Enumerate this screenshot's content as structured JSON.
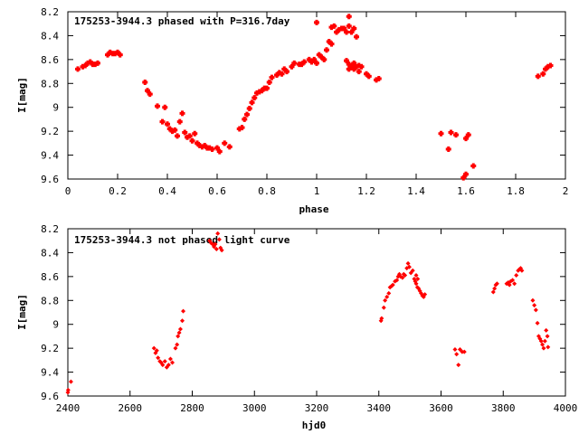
{
  "colors": {
    "points": "#ff0000",
    "axes": "#000000",
    "background": "#ffffff"
  },
  "chart_data": [
    {
      "type": "scatter",
      "title": "175253-3944.3 phased with P=316.7day",
      "xlabel": "phase",
      "ylabel": "I[mag]",
      "xlim": [
        0,
        2
      ],
      "ylim": [
        8.2,
        9.6
      ],
      "y_inverted": true,
      "grid": false,
      "xticks": [
        "0",
        "0.2",
        "0.4",
        "0.6",
        "0.8",
        "1",
        "1.2",
        "1.4",
        "1.6",
        "1.8",
        "2"
      ],
      "yticks": [
        "8.2",
        "8.4",
        "8.6",
        "8.8",
        "9",
        "9.2",
        "9.4",
        "9.6"
      ],
      "marker": "cross",
      "points": [
        [
          0.04,
          8.68
        ],
        [
          0.06,
          8.66
        ],
        [
          0.07,
          8.65
        ],
        [
          0.08,
          8.63
        ],
        [
          0.09,
          8.62
        ],
        [
          0.1,
          8.64
        ],
        [
          0.11,
          8.64
        ],
        [
          0.12,
          8.63
        ],
        [
          0.16,
          8.56
        ],
        [
          0.17,
          8.54
        ],
        [
          0.18,
          8.55
        ],
        [
          0.19,
          8.55
        ],
        [
          0.2,
          8.54
        ],
        [
          0.21,
          8.56
        ],
        [
          0.31,
          8.79
        ],
        [
          0.32,
          8.86
        ],
        [
          0.33,
          8.89
        ],
        [
          0.36,
          8.99
        ],
        [
          0.38,
          9.12
        ],
        [
          0.39,
          9.0
        ],
        [
          0.4,
          9.14
        ],
        [
          0.41,
          9.18
        ],
        [
          0.42,
          9.2
        ],
        [
          0.43,
          9.19
        ],
        [
          0.44,
          9.24
        ],
        [
          0.45,
          9.12
        ],
        [
          0.46,
          9.05
        ],
        [
          0.47,
          9.21
        ],
        [
          0.48,
          9.25
        ],
        [
          0.49,
          9.24
        ],
        [
          0.5,
          9.28
        ],
        [
          0.51,
          9.22
        ],
        [
          0.52,
          9.3
        ],
        [
          0.53,
          9.32
        ],
        [
          0.54,
          9.33
        ],
        [
          0.55,
          9.32
        ],
        [
          0.56,
          9.34
        ],
        [
          0.57,
          9.34
        ],
        [
          0.58,
          9.35
        ],
        [
          0.6,
          9.34
        ],
        [
          0.61,
          9.37
        ],
        [
          0.63,
          9.3
        ],
        [
          0.65,
          9.33
        ],
        [
          0.69,
          9.18
        ],
        [
          0.7,
          9.17
        ],
        [
          0.71,
          9.1
        ],
        [
          0.72,
          9.06
        ],
        [
          0.73,
          9.01
        ],
        [
          0.74,
          8.96
        ],
        [
          0.75,
          8.92
        ],
        [
          0.76,
          8.88
        ],
        [
          0.77,
          8.87
        ],
        [
          0.78,
          8.86
        ],
        [
          0.79,
          8.84
        ],
        [
          0.8,
          8.84
        ],
        [
          0.81,
          8.79
        ],
        [
          0.82,
          8.75
        ],
        [
          0.84,
          8.73
        ],
        [
          0.85,
          8.71
        ],
        [
          0.86,
          8.72
        ],
        [
          0.87,
          8.68
        ],
        [
          0.88,
          8.7
        ],
        [
          0.9,
          8.66
        ],
        [
          0.91,
          8.63
        ],
        [
          0.93,
          8.64
        ],
        [
          0.94,
          8.64
        ],
        [
          0.95,
          8.62
        ],
        [
          0.97,
          8.6
        ],
        [
          0.98,
          8.62
        ],
        [
          0.99,
          8.6
        ],
        [
          1.0,
          8.63
        ],
        [
          1.01,
          8.56
        ],
        [
          1.02,
          8.58
        ],
        [
          1.03,
          8.6
        ],
        [
          1.04,
          8.52
        ],
        [
          1.05,
          8.45
        ],
        [
          1.06,
          8.33
        ],
        [
          1.07,
          8.32
        ],
        [
          1.08,
          8.37
        ],
        [
          1.09,
          8.35
        ],
        [
          1.1,
          8.34
        ],
        [
          1.11,
          8.34
        ],
        [
          1.12,
          8.37
        ],
        [
          1.13,
          8.32
        ],
        [
          1.14,
          8.37
        ],
        [
          1.15,
          8.34
        ],
        [
          1.16,
          8.41
        ],
        [
          1.0,
          8.29
        ],
        [
          1.13,
          8.24
        ],
        [
          1.06,
          8.47
        ],
        [
          1.12,
          8.61
        ],
        [
          1.13,
          8.64
        ],
        [
          1.14,
          8.66
        ],
        [
          1.15,
          8.63
        ],
        [
          1.16,
          8.66
        ],
        [
          1.17,
          8.65
        ],
        [
          1.18,
          8.66
        ],
        [
          1.2,
          8.72
        ],
        [
          1.21,
          8.74
        ],
        [
          1.24,
          8.77
        ],
        [
          1.25,
          8.76
        ],
        [
          1.13,
          8.68
        ],
        [
          1.15,
          8.68
        ],
        [
          1.17,
          8.7
        ],
        [
          1.5,
          9.22
        ],
        [
          1.53,
          9.35
        ],
        [
          1.54,
          9.21
        ],
        [
          1.56,
          9.23
        ],
        [
          1.59,
          9.59
        ],
        [
          1.6,
          9.56
        ],
        [
          1.6,
          9.26
        ],
        [
          1.61,
          9.23
        ],
        [
          1.63,
          9.49
        ],
        [
          1.89,
          8.74
        ],
        [
          1.91,
          8.72
        ],
        [
          1.92,
          8.68
        ],
        [
          1.93,
          8.66
        ],
        [
          1.94,
          8.65
        ]
      ]
    },
    {
      "type": "scatter",
      "title": "175253-3944.3 not phased light curve",
      "xlabel": "hjd0",
      "ylabel": "I[mag]",
      "xlim": [
        2400,
        4000
      ],
      "ylim": [
        8.2,
        9.6
      ],
      "y_inverted": true,
      "grid": false,
      "xticks": [
        "2400",
        "2600",
        "2800",
        "3000",
        "3200",
        "3400",
        "3600",
        "3800",
        "4000"
      ],
      "yticks": [
        "8.2",
        "8.4",
        "8.6",
        "8.8",
        "9",
        "9.2",
        "9.4",
        "9.6"
      ],
      "marker": "diamond",
      "points": [
        [
          2400,
          9.57
        ],
        [
          2401,
          9.55
        ],
        [
          2410,
          9.48
        ],
        [
          2677,
          9.2
        ],
        [
          2682,
          9.24
        ],
        [
          2686,
          9.22
        ],
        [
          2690,
          9.28
        ],
        [
          2696,
          9.31
        ],
        [
          2700,
          9.32
        ],
        [
          2705,
          9.34
        ],
        [
          2712,
          9.31
        ],
        [
          2718,
          9.36
        ],
        [
          2724,
          9.34
        ],
        [
          2730,
          9.29
        ],
        [
          2736,
          9.32
        ],
        [
          2746,
          9.2
        ],
        [
          2751,
          9.17
        ],
        [
          2754,
          9.1
        ],
        [
          2758,
          9.07
        ],
        [
          2762,
          9.04
        ],
        [
          2768,
          8.97
        ],
        [
          2771,
          8.89
        ],
        [
          2856,
          8.3
        ],
        [
          2861,
          8.32
        ],
        [
          2866,
          8.33
        ],
        [
          2870,
          8.35
        ],
        [
          2874,
          8.33
        ],
        [
          2878,
          8.37
        ],
        [
          2882,
          8.24
        ],
        [
          2887,
          8.29
        ],
        [
          2891,
          8.36
        ],
        [
          2895,
          8.38
        ],
        [
          3407,
          8.97
        ],
        [
          3409,
          8.95
        ],
        [
          3416,
          8.86
        ],
        [
          3420,
          8.8
        ],
        [
          3426,
          8.77
        ],
        [
          3432,
          8.74
        ],
        [
          3436,
          8.69
        ],
        [
          3441,
          8.68
        ],
        [
          3445,
          8.67
        ],
        [
          3452,
          8.64
        ],
        [
          3458,
          8.63
        ],
        [
          3462,
          8.6
        ],
        [
          3466,
          8.58
        ],
        [
          3470,
          8.6
        ],
        [
          3476,
          8.61
        ],
        [
          3480,
          8.58
        ],
        [
          3484,
          8.59
        ],
        [
          3490,
          8.53
        ],
        [
          3494,
          8.49
        ],
        [
          3498,
          8.52
        ],
        [
          3503,
          8.57
        ],
        [
          3509,
          8.55
        ],
        [
          3514,
          8.62
        ],
        [
          3517,
          8.64
        ],
        [
          3520,
          8.66
        ],
        [
          3524,
          8.69
        ],
        [
          3528,
          8.7
        ],
        [
          3532,
          8.72
        ],
        [
          3536,
          8.74
        ],
        [
          3540,
          8.76
        ],
        [
          3544,
          8.77
        ],
        [
          3548,
          8.75
        ],
        [
          3520,
          8.59
        ],
        [
          3525,
          8.62
        ],
        [
          3645,
          9.21
        ],
        [
          3650,
          9.25
        ],
        [
          3656,
          9.34
        ],
        [
          3661,
          9.21
        ],
        [
          3668,
          9.23
        ],
        [
          3675,
          9.23
        ],
        [
          3768,
          8.73
        ],
        [
          3772,
          8.7
        ],
        [
          3776,
          8.67
        ],
        [
          3780,
          8.66
        ],
        [
          3811,
          8.66
        ],
        [
          3816,
          8.65
        ],
        [
          3820,
          8.67
        ],
        [
          3824,
          8.64
        ],
        [
          3830,
          8.63
        ],
        [
          3836,
          8.66
        ],
        [
          3842,
          8.59
        ],
        [
          3848,
          8.55
        ],
        [
          3852,
          8.54
        ],
        [
          3856,
          8.53
        ],
        [
          3860,
          8.55
        ],
        [
          3895,
          8.8
        ],
        [
          3900,
          8.84
        ],
        [
          3905,
          8.88
        ],
        [
          3910,
          8.99
        ],
        [
          3914,
          9.1
        ],
        [
          3918,
          9.12
        ],
        [
          3922,
          9.14
        ],
        [
          3926,
          9.17
        ],
        [
          3930,
          9.2
        ],
        [
          3934,
          9.14
        ],
        [
          3938,
          9.05
        ],
        [
          3942,
          9.1
        ],
        [
          3944,
          9.19
        ]
      ]
    }
  ]
}
